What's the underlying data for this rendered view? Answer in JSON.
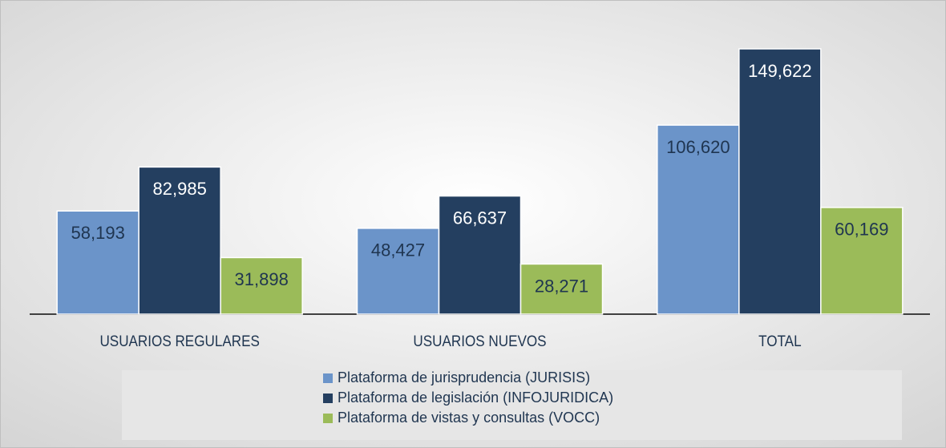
{
  "chart_data": {
    "type": "bar",
    "categories": [
      "USUARIOS REGULARES",
      "USUARIOS NUEVOS",
      "TOTAL"
    ],
    "series": [
      {
        "name": "Plataforma de jurisprudencia (JURISIS)",
        "color": "#6b94c9",
        "label_color": "#1f3550",
        "values": [
          58193,
          48427,
          106620
        ],
        "value_labels": [
          "58,193",
          "48,427",
          "106,620"
        ]
      },
      {
        "name": "Plataforma de legislación (INFOJURIDICA)",
        "color": "#243f60",
        "label_color": "#ffffff",
        "values": [
          82985,
          66637,
          149622
        ],
        "value_labels": [
          "82,985",
          "66,637",
          "149,622"
        ]
      },
      {
        "name": "Plataforma de vistas y consultas (VOCC)",
        "color": "#9bbb59",
        "label_color": "#1f3550",
        "values": [
          31898,
          28271,
          60169
        ],
        "value_labels": [
          "31,898",
          "28,271",
          "60,169"
        ]
      }
    ],
    "ylim": [
      0,
      160000
    ]
  }
}
